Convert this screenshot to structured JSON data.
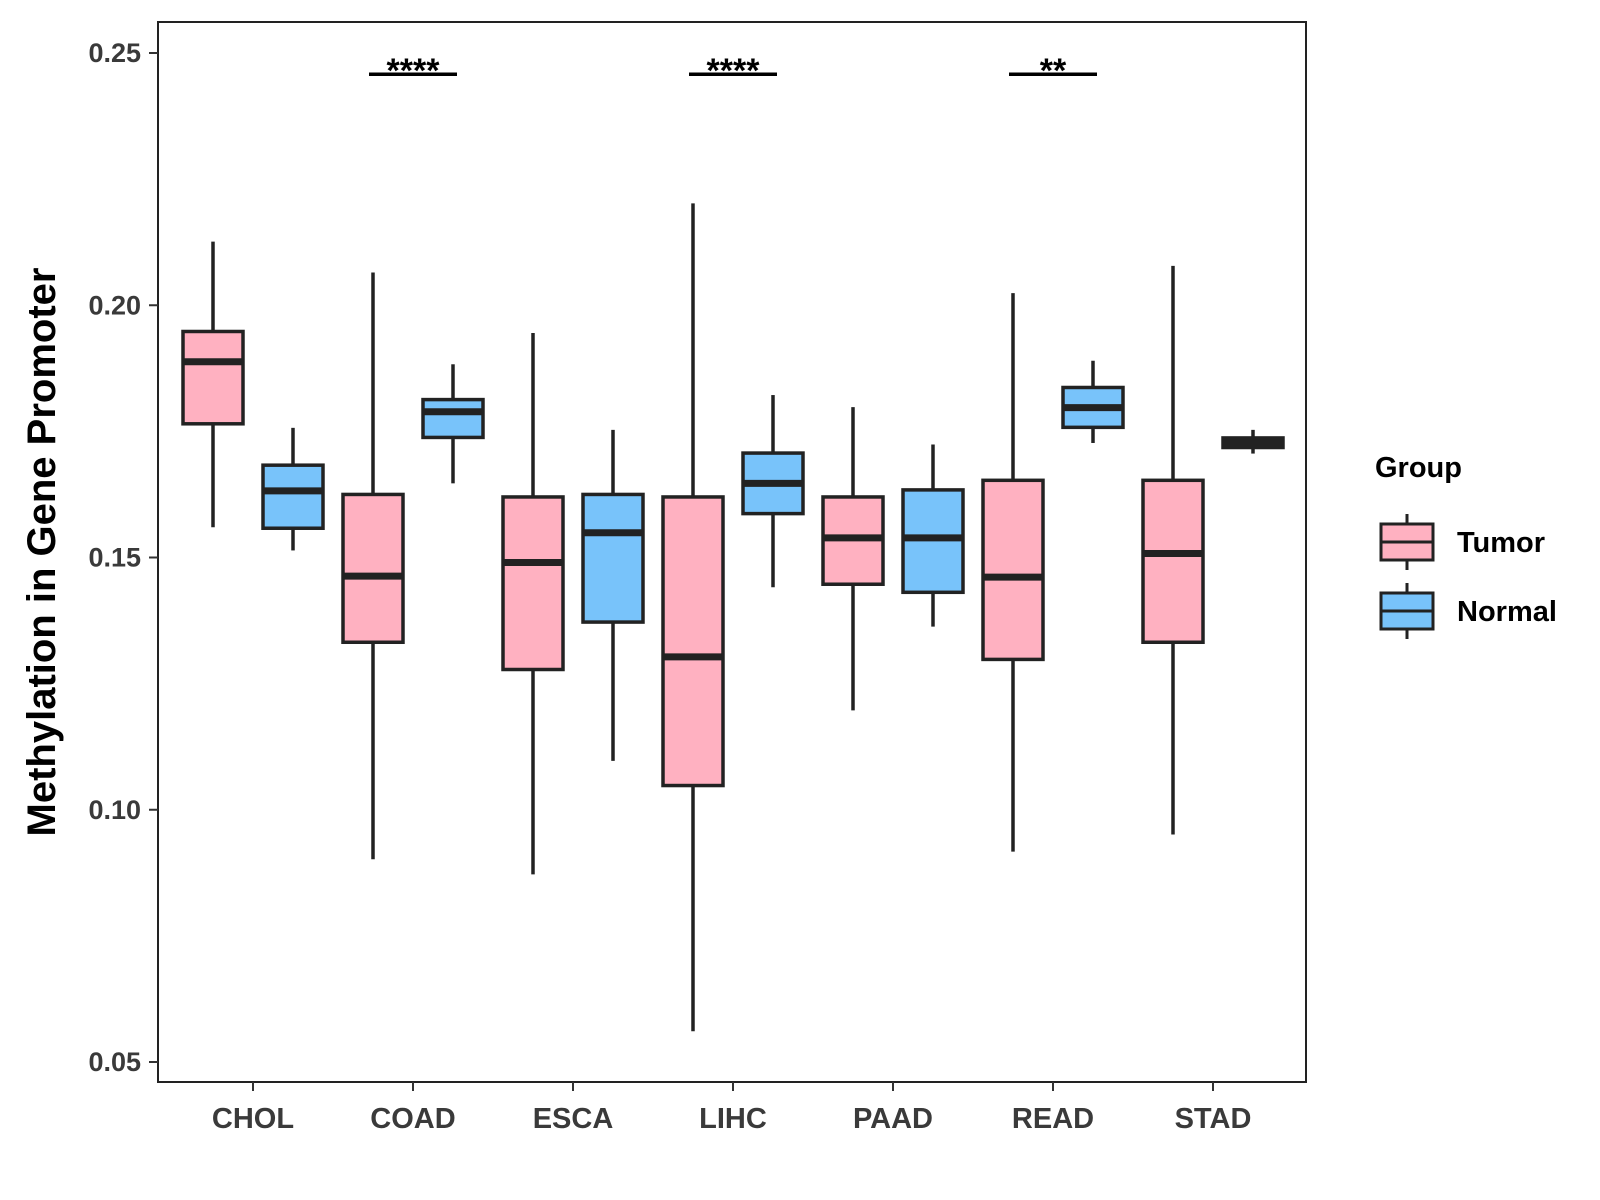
{
  "chart_data": {
    "type": "boxplot",
    "title": "",
    "xlabel": "",
    "ylabel": "Methylation in Gene Promoter",
    "ylim": [
      0.046,
      0.253
    ],
    "yticks": [
      {
        "value": 0.05,
        "label": "0.05"
      },
      {
        "value": 0.1,
        "label": "0.10"
      },
      {
        "value": 0.15,
        "label": "0.15"
      },
      {
        "value": 0.2,
        "label": "0.20"
      },
      {
        "value": 0.25,
        "label": "0.25"
      }
    ],
    "grid": false,
    "legend": {
      "title": "Group",
      "position": "right",
      "entries": [
        {
          "name": "Tumor",
          "color": "#FFB1C1"
        },
        {
          "name": "Normal",
          "color": "#78C3FA"
        }
      ]
    },
    "categories": [
      "CHOL",
      "COAD",
      "ESCA",
      "LIHC",
      "PAAD",
      "READ",
      "STAD"
    ],
    "series": [
      {
        "name": "Tumor",
        "color": "#FFB1C1",
        "boxes": [
          {
            "min": 0.156,
            "q1": 0.1765,
            "median": 0.1888,
            "q3": 0.1948,
            "max": 0.2126
          },
          {
            "min": 0.0902,
            "q1": 0.1332,
            "median": 0.1463,
            "q3": 0.1625,
            "max": 0.2065
          },
          {
            "min": 0.0872,
            "q1": 0.1278,
            "median": 0.149,
            "q3": 0.162,
            "max": 0.1945
          },
          {
            "min": 0.0561,
            "q1": 0.1048,
            "median": 0.1303,
            "q3": 0.162,
            "max": 0.2202
          },
          {
            "min": 0.1197,
            "q1": 0.1447,
            "median": 0.1539,
            "q3": 0.162,
            "max": 0.1798
          },
          {
            "min": 0.0917,
            "q1": 0.1298,
            "median": 0.1461,
            "q3": 0.1653,
            "max": 0.2024
          },
          {
            "min": 0.0951,
            "q1": 0.1332,
            "median": 0.1508,
            "q3": 0.1653,
            "max": 0.2078
          }
        ]
      },
      {
        "name": "Normal",
        "color": "#78C3FA",
        "boxes": [
          {
            "min": 0.1514,
            "q1": 0.1558,
            "median": 0.1632,
            "q3": 0.1683,
            "max": 0.1757
          },
          {
            "min": 0.1647,
            "q1": 0.1738,
            "median": 0.1789,
            "q3": 0.1813,
            "max": 0.1883
          },
          {
            "min": 0.1097,
            "q1": 0.1372,
            "median": 0.1549,
            "q3": 0.1625,
            "max": 0.1753
          },
          {
            "min": 0.1441,
            "q1": 0.1587,
            "median": 0.1647,
            "q3": 0.1707,
            "max": 0.1822
          },
          {
            "min": 0.1363,
            "q1": 0.1431,
            "median": 0.1539,
            "q3": 0.1634,
            "max": 0.1724
          },
          {
            "min": 0.1727,
            "q1": 0.1758,
            "median": 0.1797,
            "q3": 0.1837,
            "max": 0.189
          },
          {
            "min": 0.1706,
            "q1": 0.1718,
            "median": 0.1727,
            "q3": 0.1737,
            "max": 0.1753
          }
        ]
      }
    ],
    "annotations": [
      {
        "category": "COAD",
        "label": "****",
        "y": 0.2458
      },
      {
        "category": "LIHC",
        "label": "****",
        "y": 0.2458
      },
      {
        "category": "READ",
        "label": "**",
        "y": 0.2458
      }
    ]
  }
}
